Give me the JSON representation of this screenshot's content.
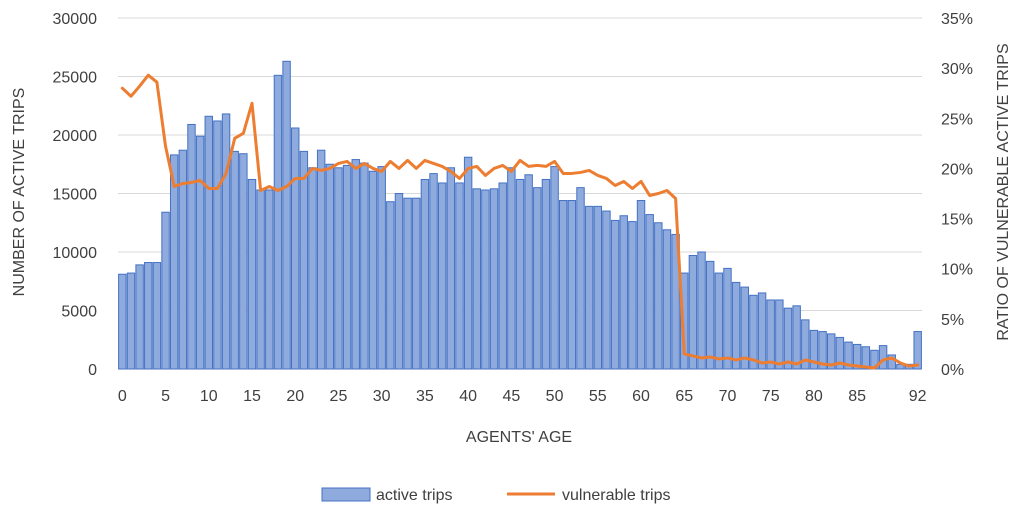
{
  "chart_data": {
    "type": "bar",
    "x": [
      0,
      1,
      2,
      3,
      4,
      5,
      6,
      7,
      8,
      9,
      10,
      11,
      12,
      13,
      14,
      15,
      16,
      17,
      18,
      19,
      20,
      21,
      22,
      23,
      24,
      25,
      26,
      27,
      28,
      29,
      30,
      31,
      32,
      33,
      34,
      35,
      36,
      37,
      38,
      39,
      40,
      41,
      42,
      43,
      44,
      45,
      46,
      47,
      48,
      49,
      50,
      51,
      52,
      53,
      54,
      55,
      56,
      57,
      58,
      59,
      60,
      61,
      62,
      63,
      64,
      65,
      66,
      67,
      68,
      69,
      70,
      71,
      72,
      73,
      74,
      75,
      76,
      77,
      78,
      79,
      80,
      81,
      82,
      83,
      84,
      85,
      86,
      87,
      88,
      89,
      90,
      91,
      92
    ],
    "x_tick_labels": [
      "0",
      "5",
      "10",
      "15",
      "20",
      "25",
      "30",
      "35",
      "40",
      "45",
      "50",
      "55",
      "60",
      "65",
      "70",
      "75",
      "80",
      "85",
      "92"
    ],
    "x_tick_values": [
      0,
      5,
      10,
      15,
      20,
      25,
      30,
      35,
      40,
      45,
      50,
      55,
      60,
      65,
      70,
      75,
      80,
      85,
      92
    ],
    "xlabel": "AGENTS' AGE",
    "ylabel": "NUMBER OF ACTIVE TRIPS",
    "y2label": "RATIO OF VULNERABLE ACTIVE TRIPS",
    "ylim": [
      0,
      30000
    ],
    "y_ticks": [
      0,
      5000,
      10000,
      15000,
      20000,
      25000,
      30000
    ],
    "y_tick_labels": [
      "0",
      "5000",
      "10000",
      "15000",
      "20000",
      "25000",
      "30000"
    ],
    "y2lim": [
      0,
      0.35
    ],
    "y2_ticks": [
      0,
      0.05,
      0.1,
      0.15,
      0.2,
      0.25,
      0.3,
      0.35
    ],
    "y2_tick_labels": [
      "0%",
      "5%",
      "10%",
      "15%",
      "20%",
      "25%",
      "30%",
      "35%"
    ],
    "grid": true,
    "legend_position": "bottom",
    "series": [
      {
        "name": "active trips",
        "type": "bar",
        "axis": "left",
        "color": "#8faadc",
        "edge_color": "#4472c4",
        "values": [
          8100,
          8200,
          8900,
          9100,
          9100,
          13400,
          18300,
          18700,
          20900,
          19900,
          21600,
          21200,
          21800,
          18600,
          18400,
          16200,
          15300,
          15300,
          25100,
          26300,
          20600,
          18600,
          17200,
          18700,
          17500,
          17200,
          17400,
          17900,
          17600,
          16900,
          17300,
          14300,
          15000,
          14600,
          14600,
          16200,
          16700,
          15900,
          17200,
          15900,
          18100,
          15400,
          15300,
          15400,
          15900,
          17200,
          16200,
          16600,
          15500,
          16200,
          17300,
          14400,
          14400,
          15500,
          13900,
          13900,
          13500,
          12700,
          13100,
          12600,
          14400,
          13200,
          12500,
          11900,
          11500,
          8200,
          9700,
          10000,
          9200,
          8200,
          8600,
          7400,
          7000,
          6300,
          6500,
          5900,
          5900,
          5200,
          5400,
          4200,
          3300,
          3200,
          3000,
          2700,
          2300,
          2100,
          1900,
          1600,
          2000,
          1200,
          400,
          400,
          3200
        ]
      },
      {
        "name": "vulnerable trips",
        "type": "line",
        "axis": "right",
        "color": "#ed7d31",
        "values": [
          0.28,
          0.272,
          0.282,
          0.293,
          0.286,
          0.222,
          0.182,
          0.185,
          0.186,
          0.188,
          0.18,
          0.18,
          0.195,
          0.23,
          0.235,
          0.265,
          0.178,
          0.182,
          0.178,
          0.182,
          0.19,
          0.19,
          0.2,
          0.198,
          0.2,
          0.205,
          0.207,
          0.2,
          0.205,
          0.2,
          0.197,
          0.207,
          0.2,
          0.208,
          0.2,
          0.208,
          0.205,
          0.202,
          0.197,
          0.19,
          0.2,
          0.202,
          0.193,
          0.2,
          0.203,
          0.197,
          0.208,
          0.202,
          0.203,
          0.202,
          0.207,
          0.195,
          0.195,
          0.196,
          0.198,
          0.193,
          0.19,
          0.183,
          0.187,
          0.18,
          0.187,
          0.173,
          0.175,
          0.178,
          0.17,
          0.015,
          0.013,
          0.011,
          0.012,
          0.01,
          0.011,
          0.009,
          0.011,
          0.009,
          0.006,
          0.007,
          0.005,
          0.007,
          0.005,
          0.009,
          0.007,
          0.005,
          0.004,
          0.006,
          0.004,
          0.003,
          0.002,
          0.001,
          0.009,
          0.011,
          0.006,
          0.003,
          0.004
        ]
      }
    ]
  }
}
